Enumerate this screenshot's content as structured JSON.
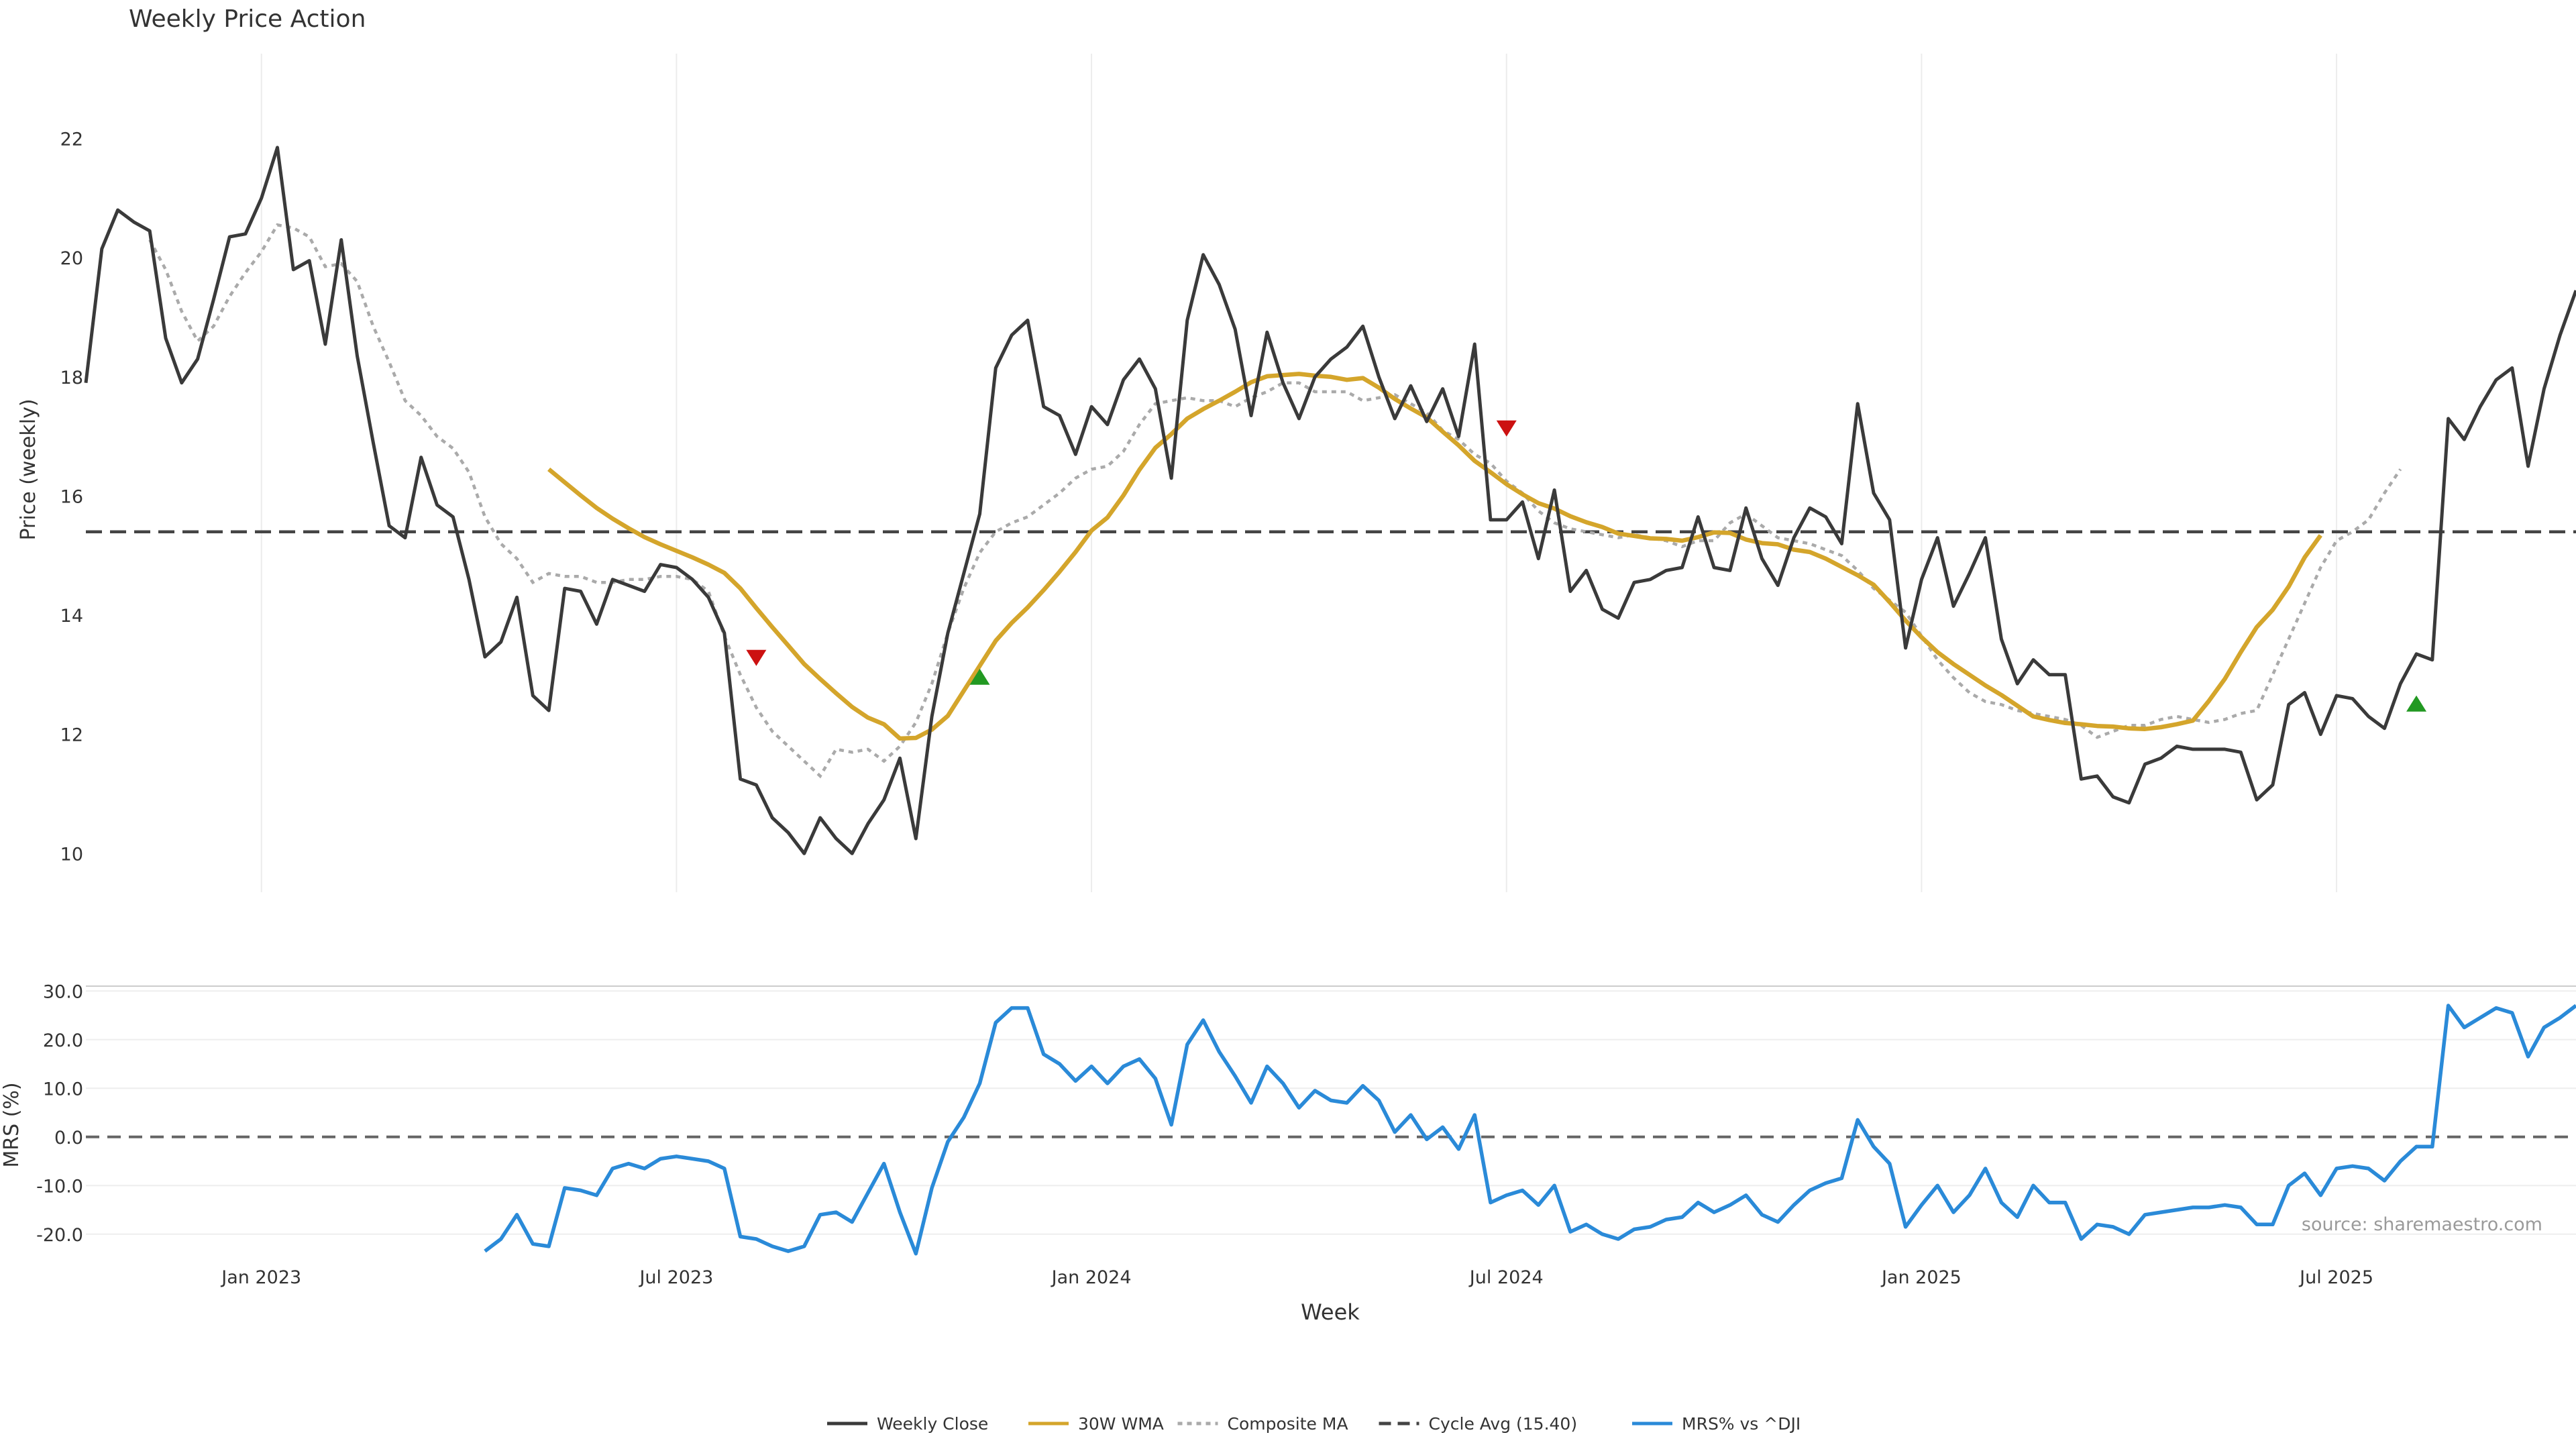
{
  "chart_data": [
    {
      "type": "line",
      "title": "Weekly Price Action",
      "ylabel": "Price (weekly)",
      "ylim": [
        9.35,
        23.2
      ],
      "yticks": [
        10,
        12,
        14,
        16,
        18,
        20,
        22
      ],
      "xlim": [
        "2022-10-17",
        "2025-10-13"
      ],
      "grid": "vertical",
      "x_start": "2022-10-17",
      "x_step_days": 7,
      "series": [
        {
          "name": "Weekly Close",
          "color": "#3a3a3a",
          "values": [
            17.9,
            20.15,
            20.8,
            20.6,
            20.45,
            18.65,
            17.9,
            18.3,
            19.3,
            20.35,
            20.4,
            21.0,
            21.85,
            19.8,
            19.95,
            18.55,
            20.3,
            18.35,
            16.9,
            15.5,
            15.3,
            16.65,
            15.85,
            15.65,
            14.6,
            13.3,
            13.55,
            14.3,
            12.65,
            12.4,
            14.45,
            14.4,
            13.85,
            14.6,
            14.5,
            14.4,
            14.85,
            14.8,
            14.6,
            14.3,
            13.7,
            11.25,
            11.15,
            10.6,
            10.35,
            10.0,
            10.6,
            10.25,
            10.0,
            10.5,
            10.9,
            11.6,
            10.25,
            12.3,
            13.7,
            14.7,
            15.7,
            18.15,
            18.7,
            18.95,
            17.5,
            17.35,
            16.7,
            17.5,
            17.2,
            17.95,
            18.3,
            17.8,
            16.3,
            18.95,
            20.05,
            19.55,
            18.8,
            17.35,
            18.75,
            17.9,
            17.3,
            18.0,
            18.3,
            18.5,
            18.85,
            18.0,
            17.3,
            17.85,
            17.25,
            17.8,
            17.0,
            18.55,
            15.6,
            15.6,
            15.9,
            14.95,
            16.1,
            14.4,
            14.75,
            14.1,
            13.95,
            14.55,
            14.6,
            14.75,
            14.8,
            15.65,
            14.8,
            14.75,
            15.8,
            14.95,
            14.5,
            15.3,
            15.8,
            15.65,
            15.2,
            17.55,
            16.05,
            15.6,
            13.45,
            14.6,
            15.3,
            14.15,
            14.7,
            15.3,
            13.6,
            12.85,
            13.25,
            13.0,
            13.0,
            11.25,
            11.3,
            10.95,
            10.85,
            11.5,
            11.6,
            11.8,
            11.75,
            11.75,
            11.75,
            11.7,
            10.9,
            11.15,
            12.5,
            12.7,
            12.0,
            12.65,
            12.6,
            12.3,
            12.1,
            12.85,
            13.35,
            13.25,
            17.3,
            16.95,
            17.5,
            17.95,
            18.15,
            16.5,
            17.8,
            18.7,
            19.45
          ]
        },
        {
          "name": "30W WMA",
          "color": "#d4a52b",
          "start_index": 29,
          "values": [
            16.45,
            16.23,
            16.01,
            15.8,
            15.62,
            15.46,
            15.31,
            15.19,
            15.08,
            14.97,
            14.85,
            14.71,
            14.45,
            14.12,
            13.8,
            13.49,
            13.18,
            12.93,
            12.69,
            12.46,
            12.28,
            12.17,
            11.93,
            11.94,
            12.08,
            12.31,
            12.73,
            13.15,
            13.57,
            13.87,
            14.13,
            14.42,
            14.73,
            15.06,
            15.42,
            15.64,
            16.01,
            16.44,
            16.81,
            17.04,
            17.3,
            17.46,
            17.6,
            17.75,
            17.91,
            18.01,
            18.03,
            18.05,
            18.02,
            18.0,
            17.95,
            17.98,
            17.82,
            17.63,
            17.47,
            17.32,
            17.08,
            16.85,
            16.59,
            16.4,
            16.2,
            16.03,
            15.88,
            15.79,
            15.66,
            15.56,
            15.48,
            15.37,
            15.33,
            15.29,
            15.28,
            15.25,
            15.31,
            15.39,
            15.38,
            15.27,
            15.21,
            15.19,
            15.1,
            15.06,
            14.95,
            14.81,
            14.67,
            14.51,
            14.22,
            13.91,
            13.63,
            13.38,
            13.18,
            13.0,
            12.82,
            12.66,
            12.48,
            12.3,
            12.24,
            12.19,
            12.17,
            12.14,
            12.13,
            12.1,
            12.09,
            12.12,
            12.17,
            12.23,
            12.56,
            12.93,
            13.38,
            13.8,
            14.09,
            14.48,
            14.97,
            15.34
          ]
        },
        {
          "name": "Composite MA",
          "color": "#aaaaaa",
          "start_index": 4,
          "values": [
            20.3,
            19.8,
            19.1,
            18.6,
            18.85,
            19.35,
            19.75,
            20.1,
            20.55,
            20.5,
            20.35,
            19.85,
            19.9,
            19.6,
            18.85,
            18.25,
            17.6,
            17.35,
            17.0,
            16.8,
            16.4,
            15.65,
            15.2,
            14.95,
            14.55,
            14.7,
            14.65,
            14.65,
            14.55,
            14.55,
            14.6,
            14.6,
            14.65,
            14.65,
            14.6,
            14.4,
            13.65,
            13.0,
            12.45,
            12.05,
            11.8,
            11.55,
            11.3,
            11.75,
            11.7,
            11.75,
            11.55,
            11.8,
            12.2,
            12.85,
            13.7,
            14.45,
            15.05,
            15.4,
            15.55,
            15.65,
            15.85,
            16.05,
            16.3,
            16.45,
            16.5,
            16.75,
            17.2,
            17.55,
            17.6,
            17.65,
            17.6,
            17.6,
            17.5,
            17.65,
            17.75,
            17.9,
            17.9,
            17.75,
            17.75,
            17.75,
            17.6,
            17.65,
            17.7,
            17.55,
            17.4,
            17.1,
            16.95,
            16.7,
            16.55,
            16.25,
            16.05,
            15.75,
            15.55,
            15.45,
            15.4,
            15.35,
            15.3,
            15.35,
            15.3,
            15.25,
            15.15,
            15.25,
            15.25,
            15.55,
            15.7,
            15.5,
            15.3,
            15.25,
            15.2,
            15.1,
            15.0,
            14.75,
            14.45,
            14.25,
            14.05,
            13.65,
            13.25,
            12.95,
            12.7,
            12.55,
            12.5,
            12.4,
            12.35,
            12.3,
            12.25,
            12.15,
            11.95,
            12.05,
            12.15,
            12.15,
            12.25,
            12.3,
            12.25,
            12.2,
            12.25,
            12.35,
            12.4,
            13.0,
            13.6,
            14.2,
            14.8,
            15.25,
            15.4,
            15.6,
            16.05,
            16.45
          ]
        },
        {
          "name": "Cycle Avg (15.40)",
          "color": "#333333",
          "value": 15.4
        }
      ],
      "markers": [
        {
          "type": "down",
          "color": "#cc1111",
          "index": 42,
          "y": 13.3
        },
        {
          "type": "up",
          "color": "#229922",
          "index": 56,
          "y": 12.95
        },
        {
          "type": "down",
          "color": "#cc1111",
          "index": 89,
          "y": 17.15
        },
        {
          "type": "up",
          "color": "#229922",
          "index": 146,
          "y": 12.5
        }
      ]
    },
    {
      "type": "line",
      "ylabel": "MRS (%)",
      "xlabel": "Week",
      "ylim": [
        -25,
        31
      ],
      "yticks": [
        30.0,
        20.0,
        10.0,
        0.0,
        -10.0,
        -20.0
      ],
      "xticks": [
        {
          "label": "Jan 2023",
          "date": "2023-01-02"
        },
        {
          "label": "Jul 2023",
          "date": "2023-07-03"
        },
        {
          "label": "Jan 2024",
          "date": "2024-01-01"
        },
        {
          "label": "Jul 2024",
          "date": "2024-07-01"
        },
        {
          "label": "Jan 2025",
          "date": "2024-12-30"
        },
        {
          "label": "Jul 2025",
          "date": "2025-06-30"
        }
      ],
      "series": [
        {
          "name": "MRS% vs ^DJI",
          "color": "#2a8ad8",
          "start_index": 25,
          "values": [
            -23.5,
            -21,
            -16,
            -22,
            -22.5,
            -10.5,
            -11,
            -12,
            -6.5,
            -5.5,
            -6.5,
            -4.5,
            -4,
            -4.5,
            -5,
            -6.5,
            -20.5,
            -21,
            -22.5,
            -23.5,
            -22.5,
            -16,
            -15.5,
            -17.5,
            -11.5,
            -5.5,
            -15.5,
            -24,
            -10.5,
            -1,
            4,
            11,
            23.5,
            26.5,
            26.5,
            17,
            15,
            11.5,
            14.5,
            11,
            14.5,
            16,
            12,
            2.5,
            19,
            24,
            17.5,
            12.5,
            7,
            14.5,
            11,
            6,
            9.5,
            7.5,
            7,
            10.5,
            7.5,
            1,
            4.5,
            -0.5,
            2,
            -2.5,
            4.5,
            -13.5,
            -12,
            -11,
            -14,
            -10,
            -19.5,
            -18,
            -20,
            -21,
            -19,
            -18.5,
            -17,
            -16.5,
            -13.5,
            -15.5,
            -14,
            -12,
            -16,
            -17.5,
            -14,
            -11,
            -9.5,
            -8.5,
            3.5,
            -2,
            -5.5,
            -18.5,
            -14,
            -10,
            -15.5,
            -12,
            -6.5,
            -13.5,
            -16.5,
            -10,
            -13.5,
            -13.5,
            -21,
            -18,
            -18.5,
            -20,
            -16,
            -15.5,
            -15,
            -14.5,
            -14.5,
            -14,
            -14.5,
            -18,
            -18,
            -10,
            -7.5,
            -12,
            -6.5,
            -6,
            -6.5,
            -9,
            -5,
            -2,
            -2,
            27,
            22.5,
            24.5,
            26.5,
            25.5,
            16.5,
            22.5,
            24.5,
            27
          ]
        }
      ],
      "annotation": "source: sharemaestro.com"
    }
  ],
  "legend": {
    "placement": "bottom-center",
    "items": [
      {
        "label": "Weekly Close",
        "color": "#3a3a3a",
        "style": "solid"
      },
      {
        "label": "30W WMA",
        "color": "#d4a52b",
        "style": "solid"
      },
      {
        "label": "Composite MA",
        "color": "#aaaaaa",
        "style": "dotted"
      },
      {
        "label": "Cycle Avg (15.40)",
        "color": "#444444",
        "style": "dashed"
      },
      {
        "label": "MRS% vs ^DJI",
        "color": "#2a8ad8",
        "style": "solid"
      }
    ]
  }
}
